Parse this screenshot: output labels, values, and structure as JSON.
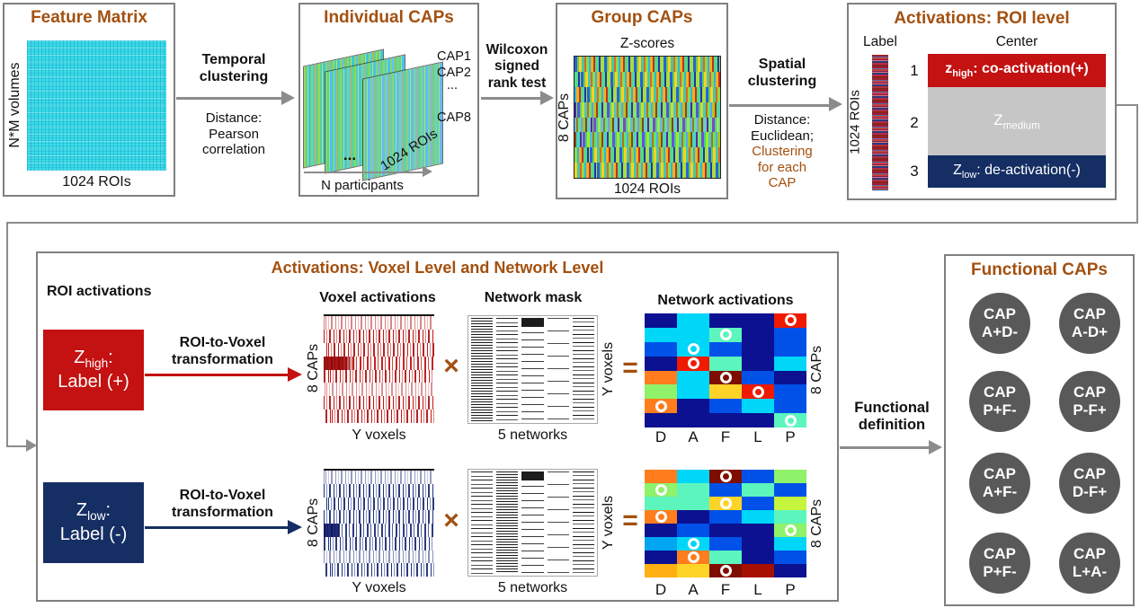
{
  "accent": {
    "brown": "#A3500F",
    "red": "#C41111",
    "navy": "#152E63",
    "arrow_gray": "#8C8C8C",
    "circle_gray": "#595959"
  },
  "feature_matrix": {
    "title": "Feature Matrix",
    "y_label": "N*M volumes",
    "x_label": "1024 ROIs"
  },
  "temporal_arrow": {
    "label": "Temporal\nclustering",
    "note": "Distance:\nPearson\ncorrelation"
  },
  "individual_caps": {
    "title": "Individual CAPs",
    "cap1": "CAP1",
    "cap2": "CAP2",
    "dots": "...",
    "cap8": "CAP8",
    "sheet_dots": "...",
    "diag_label": "1024 ROIs",
    "x_label": "N participants"
  },
  "wilcoxon_arrow": {
    "label": "Wilcoxon\nsigned\nrank test"
  },
  "group_caps": {
    "title": "Group CAPs",
    "top_label": "Z-scores",
    "y_label": "8 CAPs",
    "x_label": "1024 ROIs"
  },
  "spatial_arrow": {
    "label": "Spatial\nclustering",
    "note_black": "Distance:\nEuclidean;",
    "note_brown": "Clustering\nfor each\nCAP"
  },
  "roi_level": {
    "title": "Activations: ROI level",
    "col_label": "Label",
    "col_center": "Center",
    "strip_label": "1024 ROIs",
    "row1": {
      "num": "1",
      "pre": "z",
      "sub": "high",
      "rest": ": co-activation(+)"
    },
    "row2": {
      "num": "2",
      "pre": "Z",
      "sub": "medium",
      "rest": ""
    },
    "row3": {
      "num": "3",
      "pre": "Z",
      "sub": "low",
      "rest": ": de-activation(-)"
    }
  },
  "voxel_section": {
    "title": "Activations: Voxel Level and Network Level",
    "roi_header": "ROI activations",
    "voxel_header": "Voxel activations",
    "mask_header": "Network mask",
    "net_header": "Network activations",
    "times": "×",
    "equals": "=",
    "y_voxels": "Y voxels",
    "five_networks": "5 networks",
    "eight_caps": "8 CAPs",
    "net_cols": [
      "D",
      "A",
      "F",
      "L",
      "P"
    ],
    "high_box": {
      "pre": "Z",
      "sub": "high",
      "post": ":",
      "line2": "Label (+)"
    },
    "low_box": {
      "pre": "Z",
      "sub": "low",
      "post": ":",
      "line2": "Label (-)"
    },
    "transform_label": "ROI-to-Voxel\ntransformation"
  },
  "functional": {
    "def_label": "Functional\ndefinition",
    "title": "Functional CAPs",
    "caps": [
      {
        "l1": "CAP",
        "l2": "A+D-"
      },
      {
        "l1": "CAP",
        "l2": "A-D+"
      },
      {
        "l1": "CAP",
        "l2": "P+F-"
      },
      {
        "l1": "CAP",
        "l2": "P-F+"
      },
      {
        "l1": "CAP",
        "l2": "A+F-"
      },
      {
        "l1": "CAP",
        "l2": "D-F+"
      },
      {
        "l1": "CAP",
        "l2": "P+F-"
      },
      {
        "l1": "CAP",
        "l2": "L+A-"
      }
    ]
  },
  "heatmaps": {
    "palette": {
      "navy": "#0b1190",
      "blue": "#0051e8",
      "sky": "#00a6f2",
      "cyan": "#00d6f8",
      "spring": "#5cf5bd",
      "lgreen": "#8ef26a",
      "ygreen": "#c6f53e",
      "gold": "#ffd428",
      "orange": "#ff7d1d",
      "amber": "#ffaf12",
      "red": "#ef1a00",
      "maroon": "#7e0d00",
      "dred": "#a51000"
    },
    "top": {
      "cells": [
        [
          "navy",
          "cyan",
          "navy",
          "navy",
          "red"
        ],
        [
          "cyan",
          "cyan",
          "spring",
          "navy",
          "blue"
        ],
        [
          "blue",
          "cyan",
          "blue",
          "navy",
          "blue"
        ],
        [
          "navy",
          "red",
          "spring",
          "navy",
          "cyan"
        ],
        [
          "orange",
          "cyan",
          "maroon",
          "blue",
          "navy"
        ],
        [
          "lgreen",
          "cyan",
          "gold",
          "red",
          "blue"
        ],
        [
          "orange",
          "navy",
          "blue",
          "cyan",
          "blue"
        ],
        [
          "navy",
          "navy",
          "navy",
          "navy",
          "spring"
        ]
      ],
      "circles": [
        [
          0,
          4
        ],
        [
          1,
          2
        ],
        [
          2,
          1
        ],
        [
          3,
          1
        ],
        [
          4,
          2
        ],
        [
          5,
          3
        ],
        [
          6,
          0
        ],
        [
          7,
          4
        ]
      ]
    },
    "bottom": {
      "cells": [
        [
          "orange",
          "cyan",
          "maroon",
          "blue",
          "lgreen"
        ],
        [
          "lgreen",
          "spring",
          "blue",
          "spring",
          "blue"
        ],
        [
          "spring",
          "spring",
          "gold",
          "blue",
          "ygreen"
        ],
        [
          "orange",
          "navy",
          "blue",
          "cyan",
          "spring"
        ],
        [
          "navy",
          "blue",
          "navy",
          "navy",
          "lgreen"
        ],
        [
          "sky",
          "cyan",
          "blue",
          "navy",
          "cyan"
        ],
        [
          "navy",
          "orange",
          "spring",
          "navy",
          "blue"
        ],
        [
          "amber",
          "gold",
          "maroon",
          "dred",
          "navy"
        ]
      ],
      "circles": [
        [
          0,
          2
        ],
        [
          1,
          0
        ],
        [
          2,
          2
        ],
        [
          3,
          0
        ],
        [
          4,
          4
        ],
        [
          5,
          1
        ],
        [
          6,
          1
        ],
        [
          7,
          2
        ]
      ]
    }
  }
}
